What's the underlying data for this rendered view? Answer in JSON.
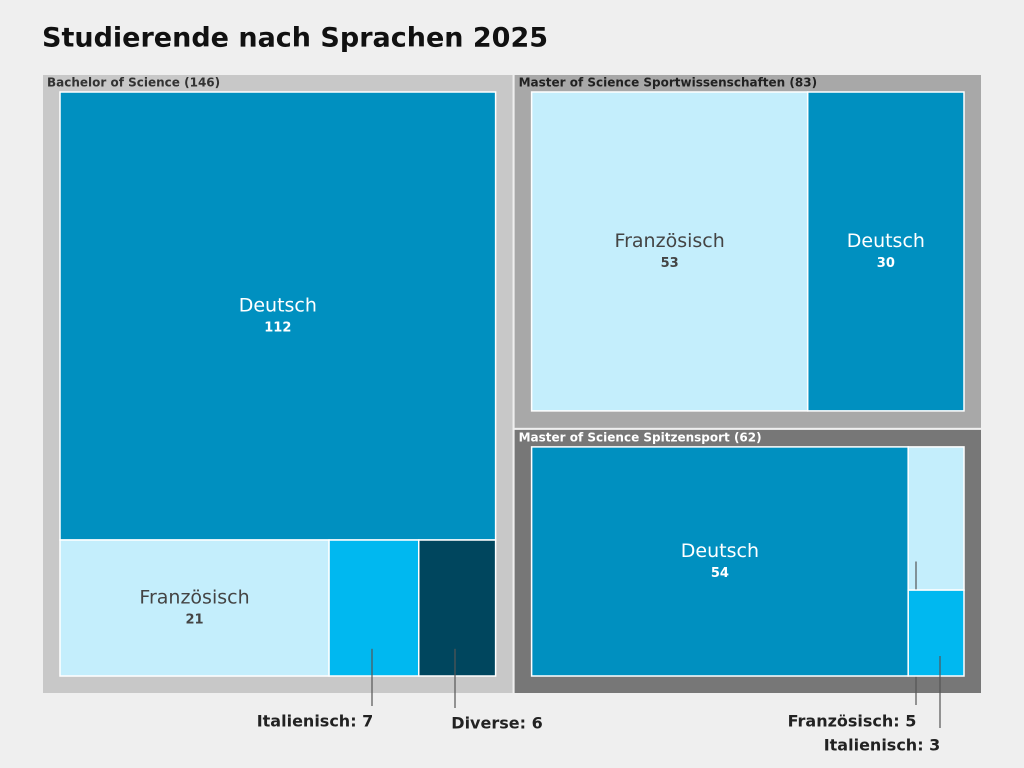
{
  "chart_data": {
    "type": "treemap",
    "title": "Studierende nach Sprachen 2025",
    "groups": [
      {
        "label": "Bachelor of Science (146)",
        "color": "#c8c8c8",
        "label_color": "#333333",
        "children": [
          {
            "name": "Deutsch",
            "value": 112,
            "color": "#0090c0"
          },
          {
            "name": "Französisch",
            "value": 21,
            "color": "#c4eefc"
          },
          {
            "name": "Italienisch",
            "value": 7,
            "color": "#00b8f0",
            "callout": "Italienisch: 7"
          },
          {
            "name": "Diverse",
            "value": 6,
            "color": "#00465e",
            "callout": "Diverse: 6"
          }
        ]
      },
      {
        "label": "Master of Science Sportwissenschaften (83)",
        "color": "#a8a8a8",
        "label_color": "#222222",
        "children": [
          {
            "name": "Französisch",
            "value": 53,
            "color": "#c4eefc"
          },
          {
            "name": "Deutsch",
            "value": 30,
            "color": "#0090c0"
          }
        ]
      },
      {
        "label": "Master of Science Spitzensport (62)",
        "color": "#777777",
        "label_color": "#ffffff",
        "children": [
          {
            "name": "Deutsch",
            "value": 54,
            "color": "#0090c0"
          },
          {
            "name": "Französisch",
            "value": 5,
            "color": "#c4eefc",
            "callout": "Französisch: 5"
          },
          {
            "name": "Italienisch",
            "value": 3,
            "color": "#00b8f0",
            "callout": "Italienisch: 3"
          }
        ]
      }
    ]
  }
}
